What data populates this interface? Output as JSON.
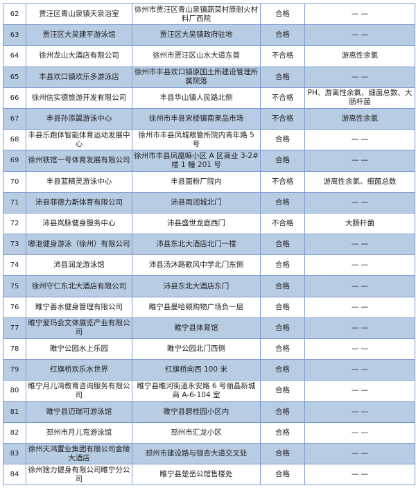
{
  "table": {
    "rows": [
      [
        "62",
        "贾汪区青山泉镇天泉浴室",
        "徐州市贾汪区青山泉镇蔬菜村原耐火材料厂西院",
        "合格",
        "— —"
      ],
      [
        "63",
        "贾汪区大吴建平游泳馆",
        "贾汪区大吴镇政府驻地",
        "合格",
        "— —"
      ],
      [
        "64",
        "徐州龙山大酒店有限公司",
        "徐州市贾汪区山水大道东首",
        "不合格",
        "游离性余氯"
      ],
      [
        "65",
        "丰县欢口镇欢乐多游泳店",
        "徐州市丰县欢口镇原国土所建设管理所属院落",
        "合格",
        "— —"
      ],
      [
        "66",
        "徐州信实德旅游开发有限公司",
        "丰县华山镇人民路北侧",
        "不合格",
        "PH、游离性余氯、细菌总数、大肠杆菌"
      ],
      [
        "67",
        "丰县孙添翼游泳中心",
        "徐州市丰县宋楼镇南果品市场",
        "不合格",
        "游离性余氯"
      ],
      [
        "68",
        "丰县乐跑体智能体育运动发展中心",
        "徐州市丰县凤城粮管所院内青年路 5 号",
        "合格",
        "— —"
      ],
      [
        "69",
        "徐州铁馆一号体育发展有限公司",
        "徐州市丰县凤凰嘛小区 A 区商业 3-2#楼 1 幢 201 号",
        "合格",
        "— —"
      ],
      [
        "70",
        "丰县蓝精灵游泳中心",
        "丰县面粉厂院内",
        "不合格",
        "游离性余氯、细菌总数"
      ],
      [
        "71",
        "沛县菲德力斯体育有限公司",
        "沛县雨润城北门",
        "合格",
        "— —"
      ],
      [
        "72",
        "沛县岚脉健身服务中心",
        "沛县盛世龙庭西门",
        "不合格",
        "大肠杆菌"
      ],
      [
        "73",
        "嘟泡健身游泳（徐州）有限公司",
        "沛县东北大酒店北门一楼",
        "合格",
        "— —"
      ],
      [
        "74",
        "沛县润龙游泳馆",
        "沛县汤沐路歌风中学北门东侧",
        "合格",
        "— —"
      ],
      [
        "75",
        "徐州守仁东北大酒店有限公司",
        "沛县东北大酒店东门",
        "合格",
        "— —"
      ],
      [
        "76",
        "睢宁善水健身管理有限公司",
        "睢宁县曼哈顿购物广场负一层",
        "合格",
        "— —"
      ],
      [
        "77",
        "睢宁爱玛会文体展览产业有限公司",
        "睢宁县体育馆",
        "合格",
        "— —"
      ],
      [
        "78",
        "睢宁公园水上乐园",
        "睢宁公园北门西侧",
        "合格",
        "— —"
      ],
      [
        "79",
        "红旗桥欢乐水世界",
        "红旗桥向西 100 米",
        "合格",
        "— —"
      ],
      [
        "80",
        "睢宁月儿湾教育咨询服务有限公司",
        "睢宁县睢河街道永安路 6 号丽晶新城商 A-6-104 室",
        "合格",
        "— —"
      ],
      [
        "81",
        "睢宁县迈瑞可游泳馆",
        "睢宁县碧桂园小区内",
        "合格",
        "— —"
      ],
      [
        "82",
        "邳州市月儿弯游泳馆",
        "邳州市汇龙小区",
        "合格",
        "— —"
      ],
      [
        "83",
        "徐州天鸿置业集团有限公司金陵大酒店",
        "邳州市建设路与银杏大道交叉处",
        "合格",
        "— —"
      ],
      [
        "84",
        "徐州猞力健身有限公司睢宁分公司",
        "睢宁县楚岳公馆售楼处",
        "合格",
        "— —"
      ]
    ]
  },
  "colors": {
    "band": "#b8cce4",
    "border": "#7b9bd1"
  }
}
